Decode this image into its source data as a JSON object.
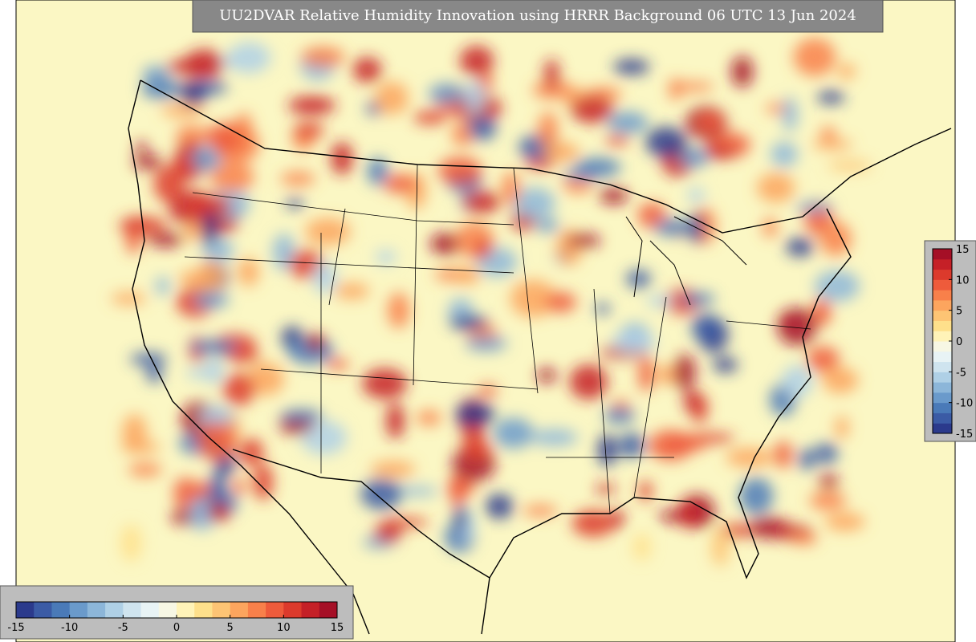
{
  "title": "UU2DVAR Relative Humidity Innovation using HRRR Background 06 UTC 13 Jun 2024",
  "colorbar": {
    "lim": [
      -15,
      15
    ],
    "ticks": [
      -15,
      -10,
      -5,
      0,
      5,
      10,
      15
    ],
    "colors": [
      "#2b3a8c",
      "#3b5ba5",
      "#4a7ab8",
      "#6a9acb",
      "#8cb6d9",
      "#afd0e6",
      "#cfe4ef",
      "#e8f3f5",
      "#f7f7e4",
      "#fff3b8",
      "#fee08b",
      "#fdc474",
      "#fca55e",
      "#f8804a",
      "#ee5b3b",
      "#dc3a2c",
      "#c52027",
      "#a50f26"
    ]
  }
}
